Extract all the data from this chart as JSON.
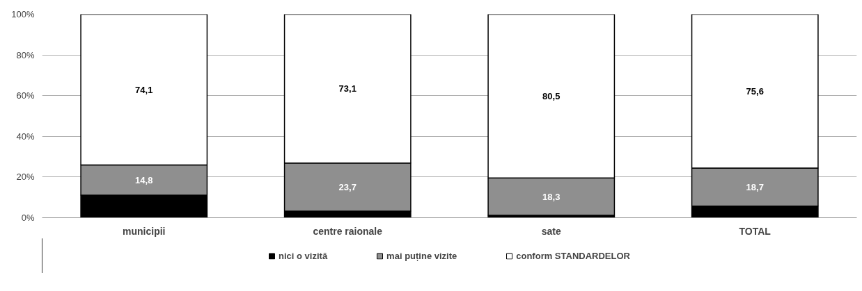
{
  "chart_data": {
    "type": "bar",
    "stacked": true,
    "categories": [
      "municipii",
      "centre raionale",
      "sate",
      "TOTAL"
    ],
    "series": [
      {
        "name": "nici o vizită",
        "color": "#000000",
        "values": [
          11.1,
          3.2,
          1.2,
          5.7
        ]
      },
      {
        "name": "mai puține vizite",
        "color": "#8f8f8f",
        "values": [
          14.8,
          23.7,
          18.3,
          18.7
        ],
        "value_labels": [
          "14,8",
          "23,7",
          "18,3",
          "18,7"
        ]
      },
      {
        "name": "conform STANDARDELOR",
        "color": "#ffffff",
        "values": [
          74.1,
          73.1,
          80.5,
          75.6
        ],
        "value_labels": [
          "74,1",
          "73,1",
          "80,5",
          "75,6"
        ]
      }
    ],
    "ylim": [
      0,
      100
    ],
    "yticks": [
      {
        "value": 0,
        "label": "0%"
      },
      {
        "value": 20,
        "label": "20%"
      },
      {
        "value": 40,
        "label": "40%"
      },
      {
        "value": 60,
        "label": "60%"
      },
      {
        "value": 80,
        "label": "80%"
      },
      {
        "value": 100,
        "label": "100%"
      }
    ],
    "grid": "y",
    "legend": "bottom"
  }
}
